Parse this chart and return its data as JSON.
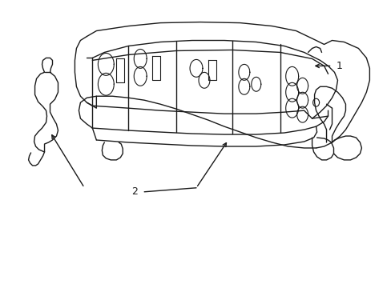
{
  "bg_color": "#ffffff",
  "line_color": "#1a1a1a",
  "line_width": 1.0,
  "label_1_text": "1",
  "label_2_text": "2"
}
